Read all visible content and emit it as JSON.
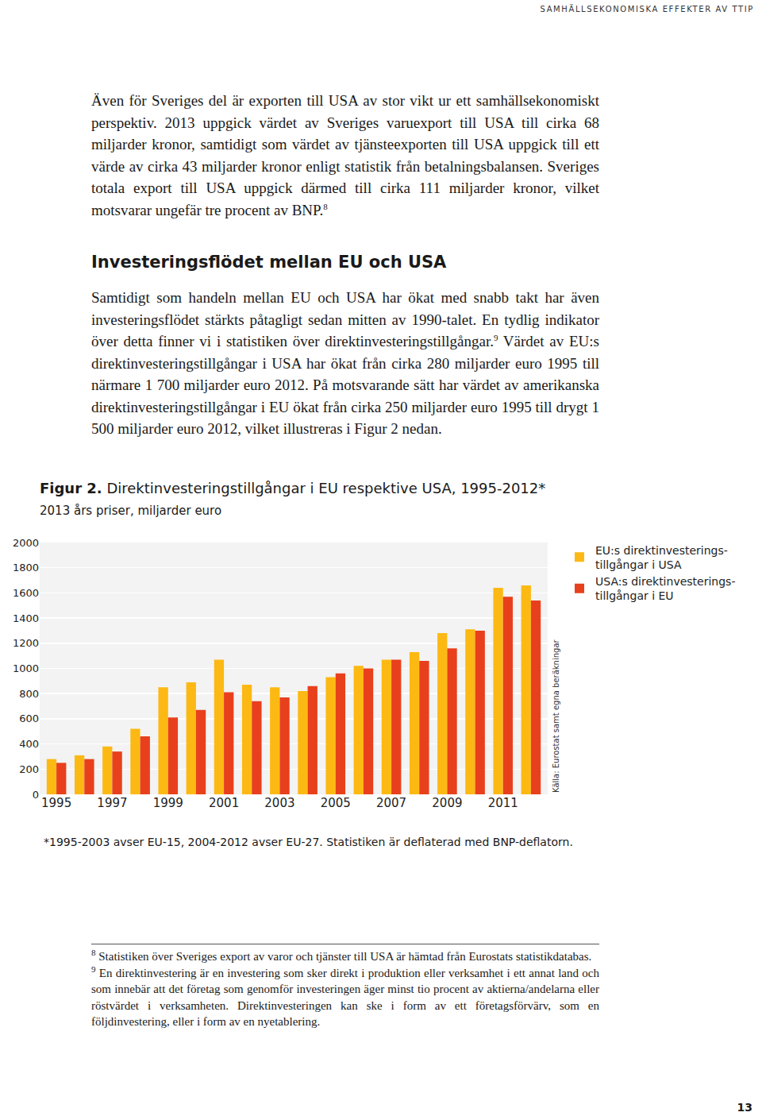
{
  "header": "SAMHÄLLSEKONOMISKA EFFEKTER AV TTIP",
  "paragraphs": [
    [
      {
        "text": "Även för Sveriges del är exporten till USA av stor vikt ur ett samhällsekonomiskt perspektiv. 2013 uppgick värdet av Sveriges varuexport till USA till cirka 68 miljarder kronor, samtidigt som värdet av tjänsteexporten till USA uppgick till ett värde av cirka 43 miljarder kronor enligt statistik från betalningsbalansen. Sveriges totala export till USA uppgick därmed till cirka 111 miljarder kronor, vilket motsvarar ungefär tre procent av BNP."
      },
      {
        "sup": "8"
      }
    ],
    [
      {
        "text": "Samtidigt som handeln mellan EU och USA har ökat med snabb takt har även investeringsflödet stärkts påtagligt sedan mitten av 1990-talet. En tydlig indikator över detta finner vi i statistiken över direktinvesteringstillgångar."
      },
      {
        "sup": "9"
      },
      {
        "text": " Värdet av EU:s direktinvesteringstillgångar i USA har ökat från cirka 280 miljarder euro 1995 till närmare 1 700 miljarder euro 2012. På motsvarande sätt har värdet av amerikanska direktinvesteringstillgångar i EU ökat från cirka 250 miljarder euro 1995 till drygt 1 500 miljarder euro 2012, vilket illustreras i Figur 2 nedan."
      }
    ]
  ],
  "heading": "Investeringsflödet mellan EU och USA",
  "chart_data": {
    "type": "bar",
    "title_label": "Figur 2.",
    "title": "Direktinvesteringstillgångar i EU respektive USA, 1995-2012*",
    "subtitle": "2013 års priser, miljarder euro",
    "note": "*1995-2003 avser EU-15, 2004-2012 avser EU-27. Statistiken är deflaterad med BNP-deflatorn.",
    "annotations": [
      "Källa: Eurostat samt egna beräkningar"
    ],
    "categories": [
      "1995",
      null,
      "1997",
      null,
      "1999",
      null,
      "2001",
      null,
      "2003",
      null,
      "2005",
      null,
      "2007",
      null,
      "2009",
      null,
      "2011",
      null
    ],
    "series": [
      {
        "name": "EU:s direktinvesterings-\ntillgångar i USA",
        "color": "#fdb913",
        "values": [
          280,
          310,
          380,
          520,
          850,
          890,
          1070,
          870,
          850,
          820,
          930,
          1020,
          1070,
          1130,
          1280,
          1310,
          1640,
          1660
        ]
      },
      {
        "name": "USA:s direktinvesterings-\ntillgångar i EU",
        "color": "#e8401c",
        "values": [
          250,
          280,
          340,
          460,
          610,
          670,
          810,
          740,
          770,
          860,
          960,
          1000,
          1070,
          1060,
          1160,
          1300,
          1570,
          1540
        ]
      }
    ],
    "ylim": [
      0,
      2000
    ],
    "yticks": [
      0,
      200,
      400,
      600,
      800,
      1000,
      1200,
      1400,
      1600,
      1800,
      2000
    ],
    "grid": true,
    "legend": "right"
  },
  "footnotes": [
    {
      "mark": "8",
      "text": "Statistiken över Sveriges export av varor och tjänster till USA är hämtad från Eurostats statistikdatabas."
    },
    {
      "mark": "9",
      "text": "En direktinvestering är en investering som sker direkt i produktion eller verksamhet i ett annat land och som innebär att det företag som genomför investeringen äger minst tio procent av aktierna/andelarna eller röstvärdet i verksamheten. Direktinvesteringen kan ske i form av ett företagsförvärv, som en följdinvestering, eller i form av en nyetablering."
    }
  ],
  "page_number": "13"
}
